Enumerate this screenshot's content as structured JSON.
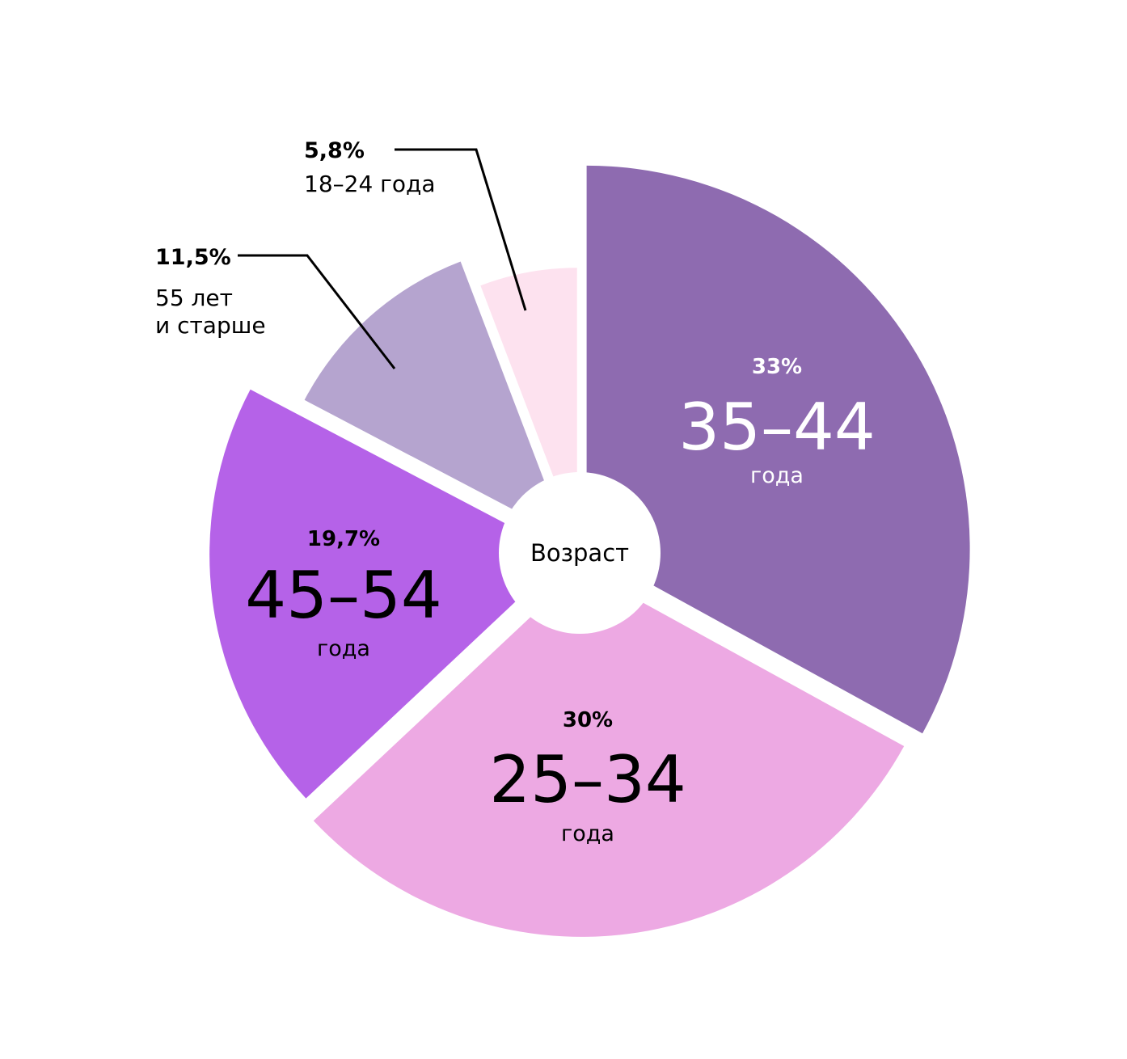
{
  "chart_data": {
    "type": "pie",
    "center_label": "Возраст",
    "slices": [
      {
        "pct_label": "33%",
        "value": 33,
        "range": "35–44",
        "unit": "года",
        "color": "#8e6bb0",
        "text_color": "#ffffff"
      },
      {
        "pct_label": "30%",
        "value": 30,
        "range": "25–34",
        "unit": "года",
        "color": "#eda9e3",
        "text_color": "#000000"
      },
      {
        "pct_label": "19,7%",
        "value": 19.7,
        "range": "45–54",
        "unit": "года",
        "color": "#b562e8",
        "text_color": "#000000"
      },
      {
        "pct_label": "11,5%",
        "value": 11.5,
        "line1": "55 лет",
        "line2": "и старше",
        "color": "#b5a4cf",
        "text_color": "#000000"
      },
      {
        "pct_label": "5,8%",
        "value": 5.8,
        "line1": "18–24 года",
        "color": "#fde2ef",
        "text_color": "#000000"
      }
    ]
  }
}
